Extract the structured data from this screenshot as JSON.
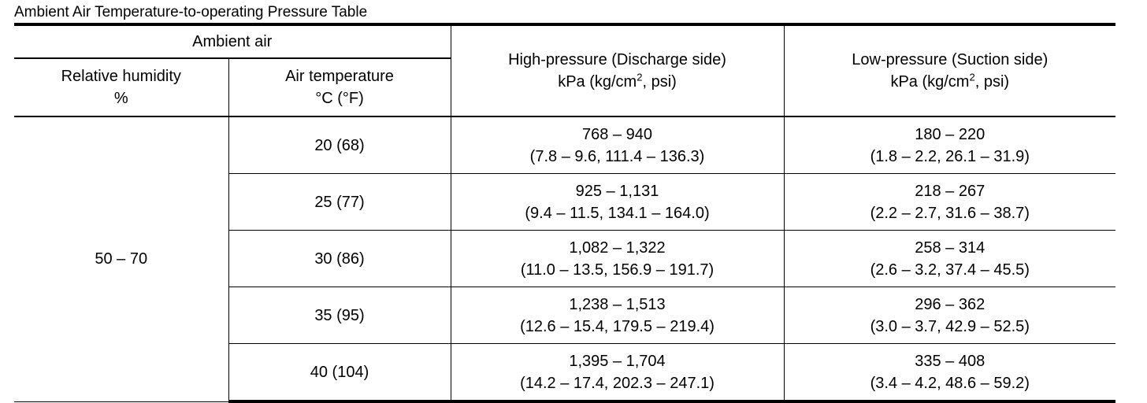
{
  "caption": "Ambient Air Temperature-to-operating Pressure Table",
  "headers": {
    "ambient_air": "Ambient air",
    "humidity_line1": "Relative humidity",
    "humidity_line2": "%",
    "airtemp_line1": "Air temperature",
    "airtemp_line2": "°C (°F)",
    "high_line1": "High-pressure (Discharge side)",
    "high_unit_a": "kPa (kg/cm",
    "high_unit_sup": "2",
    "high_unit_b": ", psi)",
    "low_line1": "Low-pressure (Suction side)",
    "low_unit_a": "kPa (kg/cm",
    "low_unit_sup": "2",
    "low_unit_b": ", psi)"
  },
  "humidity_value": "50 – 70",
  "rows": [
    {
      "temp": "20 (68)",
      "high_kpa": "768 – 940",
      "high_alt": "(7.8 – 9.6, 111.4 – 136.3)",
      "low_kpa": "180 – 220",
      "low_alt": "(1.8 – 2.2, 26.1 – 31.9)"
    },
    {
      "temp": "25 (77)",
      "high_kpa": "925 – 1,131",
      "high_alt": "(9.4 – 11.5, 134.1 – 164.0)",
      "low_kpa": "218 – 267",
      "low_alt": "(2.2 – 2.7, 31.6 – 38.7)"
    },
    {
      "temp": "30 (86)",
      "high_kpa": "1,082 – 1,322",
      "high_alt": "(11.0 – 13.5, 156.9 – 191.7)",
      "low_kpa": "258 – 314",
      "low_alt": "(2.6 – 3.2, 37.4 – 45.5)"
    },
    {
      "temp": "35 (95)",
      "high_kpa": "1,238 – 1,513",
      "high_alt": "(12.6 – 15.4, 179.5 – 219.4)",
      "low_kpa": "296 – 362",
      "low_alt": "(3.0 – 3.7, 42.9 – 52.5)"
    },
    {
      "temp": "40 (104)",
      "high_kpa": "1,395 – 1,704",
      "high_alt": "(14.2 – 17.4, 202.3 – 247.1)",
      "low_kpa": "335 – 408",
      "low_alt": "(3.4 – 4.2, 48.6 – 59.2)"
    }
  ]
}
